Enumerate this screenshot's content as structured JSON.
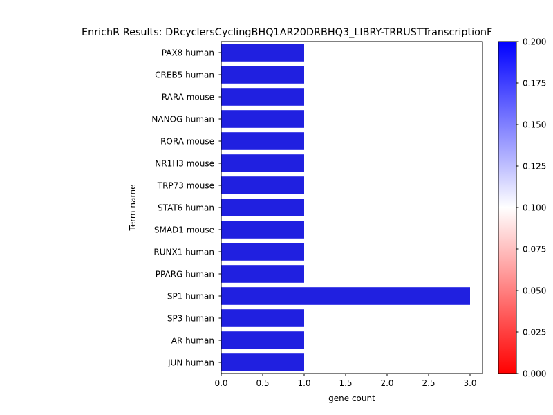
{
  "chart_data": {
    "type": "bar",
    "orientation": "horizontal",
    "title": "EnrichR Results: DRcyclersCyclingBHQ1AR20DRBHQ3_LIBRY-TRRUSTTranscriptionF",
    "xlabel": "gene count",
    "ylabel": "Term name",
    "categories": [
      "PAX8 human",
      "CREB5 human",
      "RARA mouse",
      "NANOG human",
      "RORA mouse",
      "NR1H3 mouse",
      "TRP73 mouse",
      "STAT6 human",
      "SMAD1 mouse",
      "RUNX1 human",
      "PPARG human",
      "SP1 human",
      "SP3 human",
      "AR human",
      "JUN human"
    ],
    "values": [
      1,
      1,
      1,
      1,
      1,
      1,
      1,
      1,
      1,
      1,
      1,
      3,
      1,
      1,
      1
    ],
    "bar_color": "#2020e0",
    "xlim": [
      0,
      3.15
    ],
    "xticks": [
      0,
      0.5,
      1,
      1.5,
      2,
      2.5,
      3
    ],
    "xtick_labels": [
      "0.0",
      "0.5",
      "1.0",
      "1.5",
      "2.0",
      "2.5",
      "3.0"
    ],
    "grid": false,
    "colorbar": {
      "range": [
        0,
        0.2
      ],
      "ticks": [
        0,
        0.025,
        0.05,
        0.075,
        0.1,
        0.125,
        0.15,
        0.175,
        0.2
      ],
      "tick_labels": [
        "0.000",
        "0.025",
        "0.050",
        "0.075",
        "0.100",
        "0.125",
        "0.150",
        "0.175",
        "0.200"
      ],
      "colors": [
        "#ff0000",
        "#ffffff",
        "#0000ff"
      ]
    }
  }
}
